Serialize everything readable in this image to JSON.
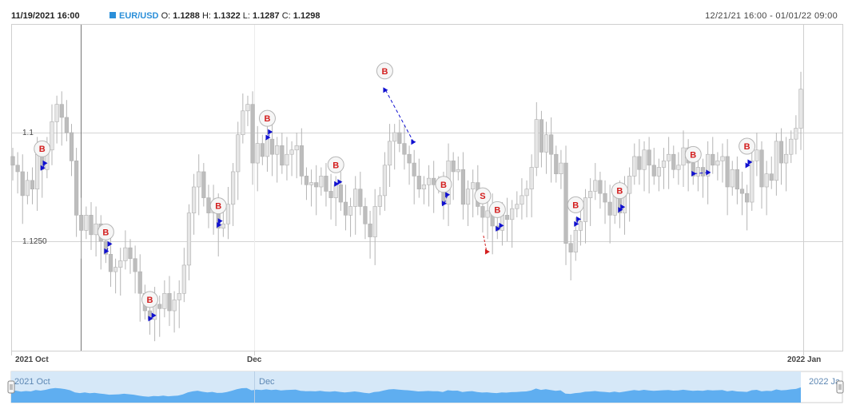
{
  "header": {
    "date": "11/19/2021 16:00",
    "symbol": "EUR/USD",
    "open_label": "O:",
    "open": "1.1288",
    "high_label": "H:",
    "high": "1.1322",
    "low_label": "L:",
    "low": "1.1287",
    "close_label": "C:",
    "close": "1.1298",
    "visible_range": "12/21/21 16:00 - 01/01/22 09:00"
  },
  "colors": {
    "candle": "#bdbdbd",
    "buy_marker_text": "#d31e1e",
    "trade_line": "#1010d0",
    "sell_arrow": "#d31e1e",
    "navigator_fill": "#5faef0",
    "navigator_bg": "#d6e8f8",
    "symbol_square": "#2b8fd9"
  },
  "chart_data": {
    "type": "candlestick",
    "symbol": "EUR/USD",
    "y_ticks": [
      {
        "value": 1.13,
        "label": "1.1"
      },
      {
        "value": 1.125,
        "label": "1.1250"
      }
    ],
    "ylim": [
      1.12,
      1.135
    ],
    "x_labels": [
      "2021 Oct",
      "Dec",
      "2022 Jan"
    ],
    "closes": [
      1.1285,
      1.1282,
      1.1271,
      1.1278,
      1.1274,
      1.129,
      1.1283,
      1.1292,
      1.1305,
      1.1313,
      1.1307,
      1.13,
      1.1287,
      1.1262,
      1.1255,
      1.1262,
      1.1253,
      1.1258,
      1.125,
      1.1244,
      1.1236,
      1.1238,
      1.1241,
      1.1247,
      1.1242,
      1.1236,
      1.1226,
      1.1218,
      1.1214,
      1.1221,
      1.1219,
      1.1226,
      1.1218,
      1.1223,
      1.1226,
      1.1239,
      1.1263,
      1.1275,
      1.1282,
      1.127,
      1.1263,
      1.1268,
      1.1256,
      1.1258,
      1.1267,
      1.1282,
      1.1299,
      1.131,
      1.1313,
      1.1286,
      1.1295,
      1.1289,
      1.1297,
      1.129,
      1.1294,
      1.1285,
      1.129,
      1.1292,
      1.1294,
      1.128,
      1.1276,
      1.1277,
      1.1275,
      1.128,
      1.1273,
      1.127,
      1.1276,
      1.1268,
      1.1262,
      1.1266,
      1.1274,
      1.1266,
      1.1258,
      1.1252,
      1.1266,
      1.1271,
      1.1285,
      1.1296,
      1.13,
      1.1295,
      1.129,
      1.1286,
      1.128,
      1.1274,
      1.1276,
      1.1279,
      1.1276,
      1.1276,
      1.1267,
      1.1287,
      1.1282,
      1.1283,
      1.1267,
      1.1274,
      1.1277,
      1.1266,
      1.1261,
      1.1264,
      1.1257,
      1.1255,
      1.1262,
      1.126,
      1.1265,
      1.1267,
      1.1271,
      1.1274,
      1.1284,
      1.1306,
      1.1291,
      1.1299,
      1.129,
      1.1281,
      1.1286,
      1.1249,
      1.1245,
      1.1255,
      1.1259,
      1.127,
      1.1273,
      1.1278,
      1.1272,
      1.1268,
      1.1262,
      1.1272,
      1.1263,
      1.1272,
      1.128,
      1.1289,
      1.1283,
      1.1292,
      1.1285,
      1.128,
      1.1284,
      1.1287,
      1.129,
      1.1283,
      1.1285,
      1.1293,
      1.1286,
      1.128,
      1.1284,
      1.128,
      1.129,
      1.1285,
      1.1287,
      1.1289,
      1.1275,
      1.1283,
      1.1274,
      1.1272,
      1.1268,
      1.1287,
      1.1292,
      1.1275,
      1.1281,
      1.1278,
      1.1296,
      1.1286,
      1.129,
      1.1297,
      1.1302,
      1.132
    ]
  },
  "markers": [
    {
      "text": "B"
    },
    {
      "text": "B"
    },
    {
      "text": "B"
    },
    {
      "text": "B"
    },
    {
      "text": "B"
    },
    {
      "text": "B"
    },
    {
      "text": "B"
    },
    {
      "text": "B"
    },
    {
      "text": "S"
    },
    {
      "text": "B"
    },
    {
      "text": "B"
    },
    {
      "text": "B"
    },
    {
      "text": "B"
    },
    {
      "text": "B"
    }
  ],
  "navigator": {
    "label_left": "2021 Oct",
    "label_mid": "Dec",
    "label_right": "2022 Ja"
  }
}
